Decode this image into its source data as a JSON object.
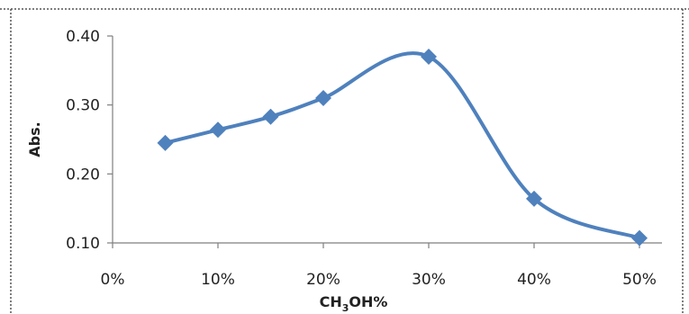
{
  "chart_data": {
    "type": "line",
    "title": "",
    "xlabel": "CH3OH%",
    "xlabel_main": "CH",
    "xlabel_sub": "3",
    "xlabel_rest": "OH%",
    "ylabel": "Abs.",
    "x_ticks": [
      "0%",
      "10%",
      "20%",
      "30%",
      "40%",
      "50%"
    ],
    "y_ticks": [
      "0.10",
      "0.20",
      "0.30",
      "0.40"
    ],
    "xlim": [
      0,
      50
    ],
    "ylim": [
      0.1,
      0.4
    ],
    "smooth": true,
    "marker": "diamond",
    "grid": false,
    "series": [
      {
        "x": [
          5,
          10,
          15,
          20,
          30,
          40,
          50
        ],
        "y": [
          0.245,
          0.264,
          0.283,
          0.31,
          0.37,
          0.164,
          0.107
        ]
      }
    ],
    "colors": {
      "series": "#4F81BD",
      "axis": "#7f7f7f"
    }
  }
}
